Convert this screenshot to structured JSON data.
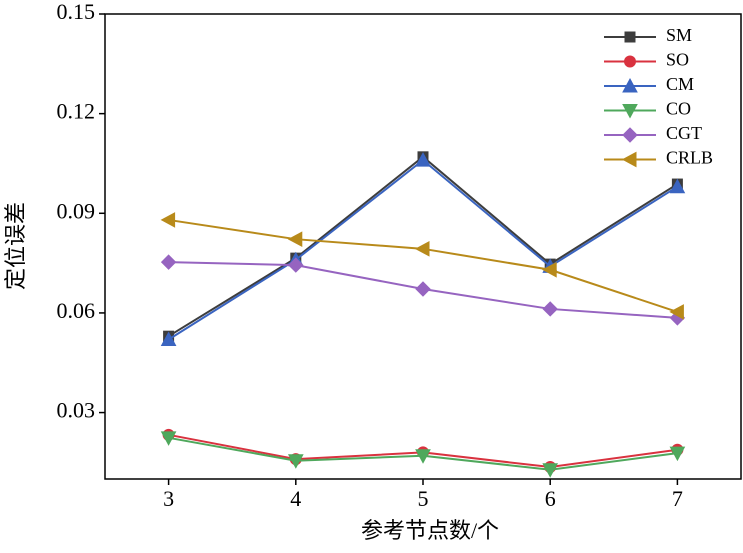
{
  "chart_data": {
    "type": "line",
    "xlabel": "参考节点数/个",
    "ylabel": "定位误差",
    "x": [
      3,
      4,
      5,
      6,
      7
    ],
    "series": [
      {
        "name": "SM",
        "color": "#3d3d3d",
        "marker": "square",
        "values": [
          0.053,
          0.0765,
          0.107,
          0.0747,
          0.0988
        ]
      },
      {
        "name": "SO",
        "color": "#d9323f",
        "marker": "circle",
        "values": [
          0.0233,
          0.016,
          0.018,
          0.0136,
          0.0188
        ]
      },
      {
        "name": "CM",
        "color": "#3a64c0",
        "marker": "triangle-up",
        "values": [
          0.052,
          0.076,
          0.106,
          0.074,
          0.098
        ]
      },
      {
        "name": "CO",
        "color": "#4fa85c",
        "marker": "triangle-down",
        "values": [
          0.0224,
          0.0155,
          0.017,
          0.0128,
          0.0178
        ]
      },
      {
        "name": "CGT",
        "color": "#9664c0",
        "marker": "diamond",
        "values": [
          0.0753,
          0.0744,
          0.0672,
          0.0612,
          0.0585
        ]
      },
      {
        "name": "CRLB",
        "color": "#b88a1a",
        "marker": "triangle-left",
        "values": [
          0.088,
          0.0822,
          0.0793,
          0.073,
          0.0603
        ]
      }
    ],
    "xlim": [
      2.5,
      7.5
    ],
    "xticks": [
      3,
      4,
      5,
      6,
      7
    ],
    "ylim": [
      0.01,
      0.15
    ],
    "yticks": [
      0.03,
      0.06,
      0.09,
      0.12,
      0.15
    ],
    "legend": "upper right"
  }
}
